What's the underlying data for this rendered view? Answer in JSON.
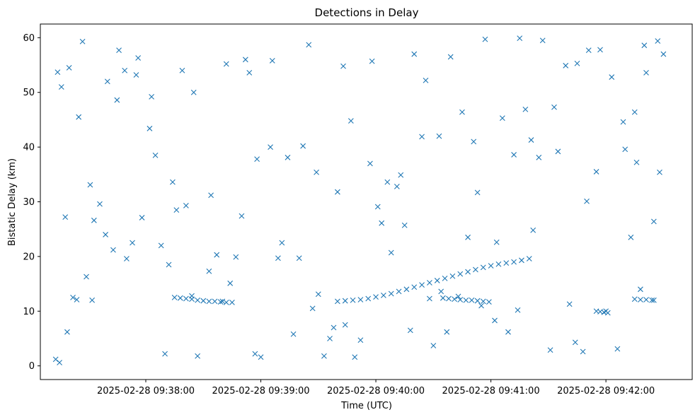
{
  "chart_data": {
    "type": "scatter",
    "title": "Detections in Delay",
    "xlabel": "Time (UTC)",
    "ylabel": "Bistatic Delay (km)",
    "marker": "x",
    "color": "#1f77b4",
    "grid": false,
    "x_ticks": [
      "2025-02-28 09:38:00",
      "2025-02-28 09:39:00",
      "2025-02-28 09:40:00",
      "2025-02-28 09:41:00",
      "2025-02-28 09:42:00"
    ],
    "y_ticks": [
      0,
      10,
      20,
      30,
      40,
      50,
      60
    ],
    "xlim": [
      "2025-02-28 09:37:05",
      "2025-02-28 09:42:45"
    ],
    "ylim": [
      -2.5,
      62.5
    ],
    "series": [
      {
        "description": "noise",
        "x": [
          "09:37:13",
          "09:37:14",
          "09:37:16",
          "09:37:18",
          "09:37:20",
          "09:37:24",
          "09:37:27",
          "09:37:29",
          "09:37:31",
          "09:37:39",
          "09:37:43",
          "09:37:45",
          "09:37:50",
          "09:37:53",
          "09:37:56",
          "09:38:03",
          "09:38:08",
          "09:38:14",
          "09:38:21",
          "09:38:25",
          "09:38:34",
          "09:38:42",
          "09:38:47",
          "09:38:54",
          "09:39:00",
          "09:39:06",
          "09:39:11",
          "09:39:20",
          "09:39:25",
          "09:39:33",
          "09:39:38",
          "09:39:43",
          "09:39:47",
          "09:39:52",
          "09:39:58",
          "09:40:03",
          "09:40:08",
          "09:40:13",
          "09:40:20",
          "09:40:26",
          "09:40:33",
          "09:40:39",
          "09:40:45",
          "09:40:51",
          "09:40:57",
          "09:41:03",
          "09:41:09",
          "09:41:15",
          "09:41:21",
          "09:41:27",
          "09:41:33",
          "09:41:39",
          "09:41:45",
          "09:41:51",
          "09:41:57",
          "09:42:03",
          "09:42:09",
          "09:42:15",
          "09:42:21",
          "09:42:27",
          "09:42:30",
          "09:37:15",
          "09:37:19",
          "09:37:25",
          "09:37:32",
          "09:37:40",
          "09:37:46",
          "09:37:55",
          "09:38:02",
          "09:38:10",
          "09:38:16",
          "09:38:24",
          "09:38:33",
          "09:38:40",
          "09:38:50",
          "09:38:58",
          "09:39:05",
          "09:39:14",
          "09:39:22",
          "09:39:30",
          "09:39:40",
          "09:39:49",
          "09:39:57",
          "09:40:06",
          "09:40:15",
          "09:40:24",
          "09:40:34",
          "09:40:43",
          "09:40:53",
          "09:41:02",
          "09:41:12",
          "09:41:22",
          "09:41:31",
          "09:41:41",
          "09:41:50",
          "09:42:00",
          "09:42:10",
          "09:42:20",
          "09:42:28",
          "09:37:22",
          "09:37:36",
          "09:37:49",
          "09:38:05",
          "09:38:19",
          "09:38:37",
          "09:38:52",
          "09:39:09",
          "09:39:27",
          "09:39:44",
          "09:40:01",
          "09:40:18",
          "09:40:37",
          "09:40:55",
          "09:41:14",
          "09:41:35",
          "09:41:55",
          "09:42:13",
          "09:42:25",
          "09:37:33",
          "09:37:58",
          "09:38:27",
          "09:38:57",
          "09:39:17",
          "09:39:36",
          "09:40:11",
          "09:40:30",
          "09:40:48",
          "09:41:06",
          "09:41:25",
          "09:41:44",
          "09:42:06",
          "09:42:18",
          "09:38:12",
          "09:38:44",
          "09:39:29",
          "09:40:28",
          "09:41:18",
          "09:41:48",
          "09:42:16"
        ],
        "y": [
          1.2,
          53.7,
          51.0,
          27.2,
          54.5,
          12.1,
          59.3,
          16.3,
          33.1,
          24.0,
          21.2,
          48.6,
          19.6,
          22.5,
          56.3,
          49.2,
          22.0,
          33.6,
          29.3,
          50.0,
          31.2,
          55.2,
          19.9,
          53.6,
          1.6,
          55.8,
          22.5,
          19.7,
          58.7,
          1.8,
          7.0,
          54.8,
          44.8,
          4.7,
          55.7,
          26.1,
          20.7,
          34.9,
          57.0,
          52.2,
          42.0,
          56.5,
          46.4,
          41.0,
          59.7,
          22.6,
          6.2,
          59.9,
          41.3,
          59.5,
          47.3,
          54.9,
          55.3,
          57.7,
          57.8,
          52.8,
          44.6,
          46.4,
          53.6,
          59.4,
          57.0,
          0.6,
          6.2,
          45.5,
          12.0,
          52.0,
          57.7,
          53.2,
          43.4,
          2.2,
          28.5,
          12.8,
          17.3,
          11.8,
          27.4,
          37.8,
          40.0,
          38.1,
          40.2,
          13.1,
          31.8,
          1.6,
          37.0,
          33.6,
          25.7,
          41.9,
          13.6,
          12.7,
          31.7,
          8.3,
          38.6,
          24.8,
          2.9,
          11.3,
          30.1,
          10.0,
          39.6,
          58.6,
          35.4,
          12.5,
          29.6,
          54.0,
          38.5,
          54.0,
          20.3,
          56.0,
          19.7,
          10.5,
          7.5,
          29.1,
          6.5,
          6.2,
          11.0,
          10.2,
          39.2,
          35.5,
          23.5,
          26.4,
          26.6,
          27.1,
          1.8,
          2.2,
          5.8,
          5.0,
          32.8,
          3.7,
          23.5,
          45.3,
          38.1,
          4.3,
          3.1,
          14.0,
          18.5,
          15.1,
          35.4,
          12.3,
          46.9,
          2.6,
          37.2
        ]
      },
      {
        "description": "track A (decreasing, 09:38:15–09:38:45)",
        "x": [
          "09:38:15",
          "09:38:18",
          "09:38:21",
          "09:38:24",
          "09:38:27",
          "09:38:30",
          "09:38:33",
          "09:38:36",
          "09:38:39",
          "09:38:42",
          "09:38:45"
        ],
        "y": [
          12.5,
          12.4,
          12.3,
          12.2,
          12.0,
          11.9,
          11.8,
          11.8,
          11.7,
          11.6,
          11.6
        ]
      },
      {
        "description": "track B (increasing, 09:39:40–09:41:20)",
        "x": [
          "09:39:40",
          "09:39:44",
          "09:39:48",
          "09:39:52",
          "09:39:56",
          "09:40:00",
          "09:40:04",
          "09:40:08",
          "09:40:12",
          "09:40:16",
          "09:40:20",
          "09:40:24",
          "09:40:28",
          "09:40:32",
          "09:40:36",
          "09:40:40",
          "09:40:44",
          "09:40:48",
          "09:40:52",
          "09:40:56",
          "09:41:00",
          "09:41:04",
          "09:41:08",
          "09:41:12",
          "09:41:16",
          "09:41:20"
        ],
        "y": [
          11.8,
          11.9,
          12.0,
          12.1,
          12.3,
          12.6,
          12.9,
          13.2,
          13.6,
          14.0,
          14.4,
          14.8,
          15.2,
          15.6,
          16.0,
          16.4,
          16.8,
          17.2,
          17.6,
          18.0,
          18.3,
          18.6,
          18.8,
          19.0,
          19.3,
          19.6
        ]
      },
      {
        "description": "track C (decreasing, 09:40:35–09:41:00)",
        "x": [
          "09:40:35",
          "09:40:38",
          "09:40:41",
          "09:40:44",
          "09:40:47",
          "09:40:50",
          "09:40:53",
          "09:40:56",
          "09:40:59"
        ],
        "y": [
          12.4,
          12.3,
          12.2,
          12.1,
          12.0,
          12.0,
          11.9,
          11.8,
          11.7
        ]
      },
      {
        "description": "track D (09:41:55–09:42:02)",
        "x": [
          "09:41:55",
          "09:41:57",
          "09:41:59",
          "09:42:01"
        ],
        "y": [
          10.0,
          9.9,
          9.8,
          9.7
        ]
      },
      {
        "description": "track E (09:42:15–09:42:25)",
        "x": [
          "09:42:15",
          "09:42:18",
          "09:42:21",
          "09:42:24",
          "09:42:25"
        ],
        "y": [
          12.2,
          12.1,
          12.1,
          12.0,
          12.0
        ]
      }
    ]
  }
}
